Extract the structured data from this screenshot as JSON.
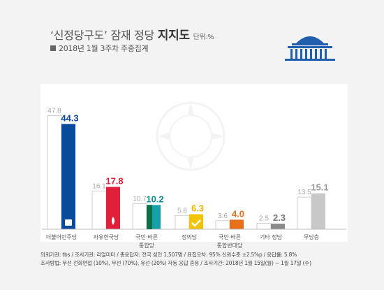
{
  "header": {
    "title_quoted": "‘신정당구도’",
    "title_mid": " 잠재 정당 ",
    "title_strong": "지지도",
    "title_unit": "단위:%",
    "subtitle": "2018년 1월 3주차 주중집계"
  },
  "chart_data": {
    "type": "bar",
    "categories": [
      "더불어민주당",
      "자유한국당",
      "국민·바른\n통합당",
      "정의당",
      "국민·바른\n통합반대당",
      "기타 정당",
      "무당층"
    ],
    "series": [
      {
        "values": [
          47.8,
          16.1,
          10.7,
          5.8,
          3.6,
          2.5,
          13.5
        ]
      },
      {
        "values": [
          44.3,
          17.8,
          10.2,
          6.3,
          4.0,
          2.3,
          15.1
        ]
      }
    ],
    "value_labels": [
      [
        "47.8",
        "16.1",
        "10.7",
        "5.8",
        "3.6",
        "2.5",
        "13.5"
      ],
      [
        "44.3",
        "17.8",
        "10.2",
        "6.3",
        "4.0",
        "2.3",
        "15.1"
      ]
    ],
    "colors": [
      "#0a4a9b",
      "#e0203a",
      "#14a0a8",
      "#f2c400",
      "#e8701a",
      "#8a8a8a",
      "#c8c8c8"
    ],
    "label_colors": [
      "#0a4a9b",
      "#e0203a",
      "#128a90",
      "#e8b800",
      "#e8701a",
      "#777777",
      "#999999"
    ],
    "ghost_color": "#ffffff",
    "ylim": [
      0,
      50
    ]
  },
  "footer": {
    "line1": "의뢰기관: tbs / 조사기관: 리얼미터 / 총응답자: 전국 성인 1,507명 / 표집오차: 95% 신뢰수준 ±2.5%p / 응답률: 5.8%",
    "line2": "조사방법: 무선 전화면접 (10%), 무선 (70%), 유선 (20%) 자동 응답 혼용 / 조사기간: 2018년 1월 15일(월) ~ 1월 17일 (수)"
  }
}
